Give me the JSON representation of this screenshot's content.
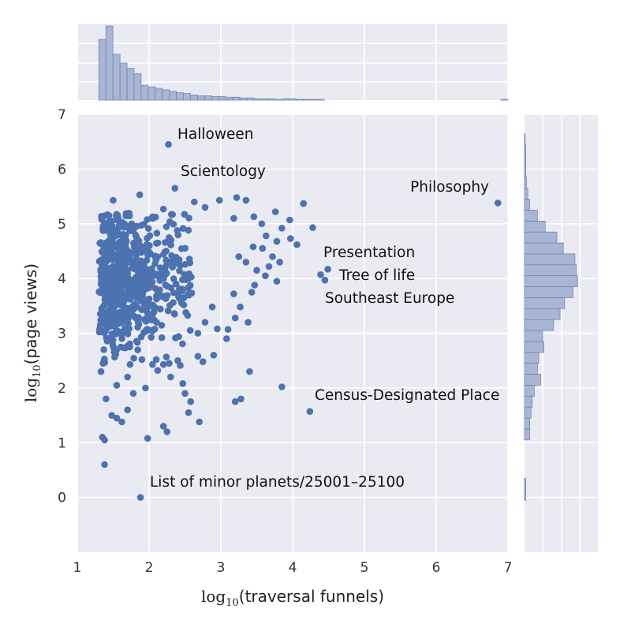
{
  "chart_data": {
    "type": "scatter",
    "title": "",
    "xlabel": {
      "math": "log",
      "sub": "10",
      "text": "(traversal funnels)"
    },
    "ylabel": {
      "math": "log",
      "sub": "10",
      "text": "(page views)"
    },
    "xlim": [
      1,
      7
    ],
    "ylim": [
      -1,
      7
    ],
    "x_ticks": [
      "1",
      "2",
      "3",
      "4",
      "5",
      "6",
      "7"
    ],
    "y_ticks": [
      "0",
      "1",
      "2",
      "3",
      "4",
      "5",
      "6",
      "7"
    ],
    "grid": true,
    "annotations": [
      {
        "label": "Halloween",
        "x": 2.27,
        "y": 6.45
      },
      {
        "label": "Scientology",
        "x": 2.36,
        "y": 5.65
      },
      {
        "label": "Philosophy",
        "x": 6.86,
        "y": 5.38
      },
      {
        "label": "Presentation",
        "x": 4.49,
        "y": 4.17
      },
      {
        "label": "Tree of life",
        "x": 4.39,
        "y": 4.07
      },
      {
        "label": "Southeast Europe",
        "x": 4.45,
        "y": 3.97
      },
      {
        "label": "Census-Designated Place",
        "x": 4.24,
        "y": 1.57
      },
      {
        "label": "List of minor planets/25001–25100",
        "x": 1.88,
        "y": 0.0
      }
    ],
    "other_points": [
      [
        1.5,
        5.43
      ],
      [
        1.87,
        5.53
      ],
      [
        2.2,
        5.27
      ],
      [
        2.05,
        5.1
      ],
      [
        2.63,
        5.4
      ],
      [
        2.78,
        5.3
      ],
      [
        2.98,
        5.43
      ],
      [
        3.22,
        5.48
      ],
      [
        3.35,
        5.43
      ],
      [
        3.18,
        5.1
      ],
      [
        3.46,
        5.13
      ],
      [
        3.57,
        5.0
      ],
      [
        3.76,
        5.22
      ],
      [
        3.96,
        5.07
      ],
      [
        4.15,
        5.37
      ],
      [
        3.85,
        4.92
      ],
      [
        4.28,
        4.93
      ],
      [
        3.63,
        4.78
      ],
      [
        3.78,
        4.68
      ],
      [
        3.97,
        4.73
      ],
      [
        4.06,
        4.62
      ],
      [
        3.45,
        4.58
      ],
      [
        3.58,
        4.55
      ],
      [
        3.72,
        4.4
      ],
      [
        3.25,
        4.4
      ],
      [
        3.35,
        4.3
      ],
      [
        3.5,
        4.15
      ],
      [
        3.67,
        4.22
      ],
      [
        3.82,
        4.3
      ],
      [
        3.62,
        4.05
      ],
      [
        3.78,
        3.95
      ],
      [
        3.47,
        3.88
      ],
      [
        3.18,
        3.72
      ],
      [
        3.43,
        3.75
      ],
      [
        3.27,
        3.48
      ],
      [
        3.2,
        3.28
      ],
      [
        3.38,
        3.2
      ],
      [
        3.1,
        3.07
      ],
      [
        2.88,
        3.48
      ],
      [
        2.78,
        3.2
      ],
      [
        2.95,
        3.08
      ],
      [
        2.68,
        3.0
      ],
      [
        3.08,
        2.9
      ],
      [
        2.9,
        2.6
      ],
      [
        2.75,
        2.48
      ],
      [
        3.4,
        2.3
      ],
      [
        3.85,
        2.02
      ],
      [
        3.28,
        1.8
      ],
      [
        3.2,
        1.75
      ],
      [
        2.7,
        1.38
      ],
      [
        2.55,
        1.55
      ],
      [
        2.2,
        1.3
      ],
      [
        2.25,
        1.2
      ],
      [
        1.98,
        1.08
      ],
      [
        1.35,
        1.1
      ],
      [
        1.38,
        1.05
      ],
      [
        1.38,
        0.6
      ],
      [
        2.47,
        2.08
      ],
      [
        2.3,
        2.2
      ],
      [
        2.68,
        2.58
      ],
      [
        2.58,
        1.75
      ],
      [
        2.5,
        1.9
      ],
      [
        1.55,
        1.45
      ],
      [
        1.62,
        1.38
      ],
      [
        1.48,
        1.5
      ],
      [
        1.7,
        1.6
      ],
      [
        1.78,
        1.9
      ],
      [
        1.95,
        2.0
      ],
      [
        2.1,
        2.52
      ],
      [
        2.28,
        2.45
      ],
      [
        2.4,
        2.5
      ],
      [
        1.9,
        2.52
      ],
      [
        2.12,
        2.32
      ],
      [
        1.55,
        2.05
      ],
      [
        1.7,
        2.2
      ],
      [
        1.4,
        1.8
      ],
      [
        1.33,
        2.3
      ],
      [
        1.37,
        2.7
      ],
      [
        1.4,
        3.05
      ],
      [
        1.36,
        2.45
      ]
    ],
    "dense_cluster": {
      "x_range": [
        1.3,
        2.6
      ],
      "y_range": [
        2.4,
        5.2
      ],
      "center": [
        1.55,
        4.0
      ]
    },
    "top_histogram_bin_heights": [
      0.82,
      1.0,
      0.62,
      0.5,
      0.43,
      0.36,
      0.2,
      0.18,
      0.16,
      0.14,
      0.12,
      0.1,
      0.09,
      0.07,
      0.06,
      0.06,
      0.05,
      0.05,
      0.04,
      0.04,
      0.03,
      0.03,
      0.02,
      0.02,
      0.02,
      0.01,
      0.02,
      0.02,
      0.01,
      0.01,
      0.01,
      0.01,
      0.0,
      0.0,
      0.0,
      0.0,
      0.0,
      0.0,
      0.0,
      0.0,
      0.0,
      0.0,
      0.0,
      0.0,
      0.0,
      0.0,
      0.0,
      0.0,
      0.0,
      0.0,
      0.0,
      0.0,
      0.0,
      0.0,
      0.0,
      0.0,
      0.0,
      0.01
    ],
    "right_histogram_bin_widths": [
      [
        -0.05,
        0.02
      ],
      [
        0.15,
        0.02
      ],
      [
        1.05,
        0.08
      ],
      [
        1.25,
        0.08
      ],
      [
        1.45,
        0.1
      ],
      [
        1.65,
        0.12
      ],
      [
        1.85,
        0.15
      ],
      [
        2.05,
        0.25
      ],
      [
        2.25,
        0.2
      ],
      [
        2.45,
        0.22
      ],
      [
        2.65,
        0.3
      ],
      [
        2.85,
        0.28
      ],
      [
        3.05,
        0.45
      ],
      [
        3.25,
        0.55
      ],
      [
        3.45,
        0.62
      ],
      [
        3.65,
        0.75
      ],
      [
        3.85,
        0.82
      ],
      [
        4.05,
        0.8
      ],
      [
        4.25,
        0.78
      ],
      [
        4.45,
        0.6
      ],
      [
        4.65,
        0.5
      ],
      [
        4.85,
        0.32
      ],
      [
        5.05,
        0.2
      ],
      [
        5.25,
        0.08
      ],
      [
        5.45,
        0.05
      ],
      [
        5.65,
        0.03
      ],
      [
        5.85,
        0.02
      ],
      [
        6.05,
        0.02
      ],
      [
        6.25,
        0.02
      ],
      [
        6.45,
        0.01
      ]
    ]
  }
}
